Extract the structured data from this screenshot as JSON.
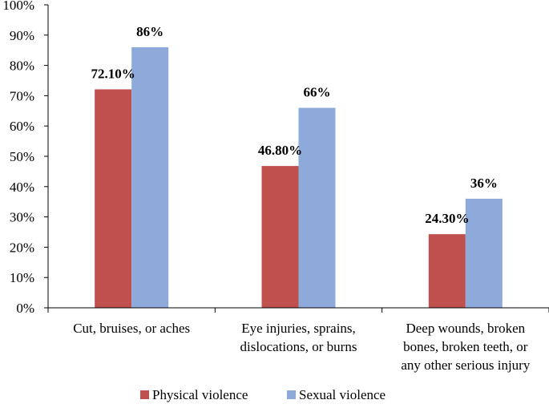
{
  "chart_data": {
    "type": "bar",
    "title": "",
    "xlabel": "",
    "ylabel": "",
    "ylim": [
      0,
      100
    ],
    "y_ticks": [
      "0%",
      "10%",
      "20%",
      "30%",
      "40%",
      "50%",
      "60%",
      "70%",
      "80%",
      "90%",
      "100%"
    ],
    "grid": false,
    "legend_position": "bottom",
    "categories": [
      [
        "Cut, bruises, or aches"
      ],
      [
        "Eye injuries, sprains,",
        "dislocations, or burns"
      ],
      [
        "Deep wounds, broken",
        "bones, broken teeth, or",
        "any other serious injury"
      ]
    ],
    "series": [
      {
        "name": "Physical violence",
        "color": "#C0504D",
        "values": [
          72.1,
          46.8,
          24.3
        ],
        "labels": [
          "72.10%",
          "46.80%",
          "24.30%"
        ]
      },
      {
        "name": "Sexual violence",
        "color": "#8EAADB",
        "values": [
          86,
          66,
          36
        ],
        "labels": [
          "86%",
          "66%",
          "36%"
        ]
      }
    ]
  }
}
